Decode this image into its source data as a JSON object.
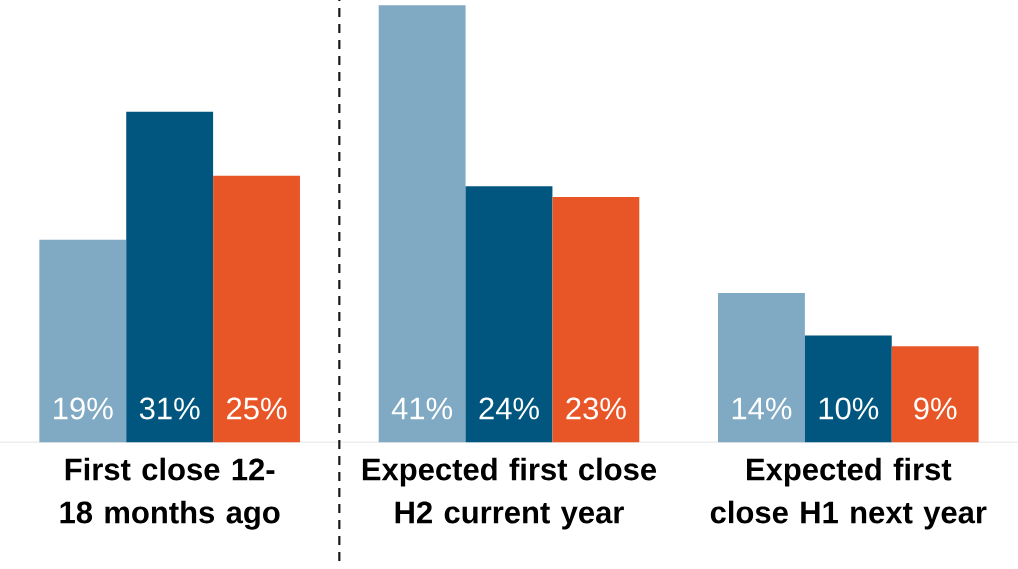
{
  "chart_data": {
    "type": "bar",
    "categories": [
      "First close 12-18 months ago",
      "Expected first close H2 current year",
      "Expected first close H1 next year"
    ],
    "series": [
      {
        "color": "#80a9c3",
        "values": [
          19,
          41,
          14
        ],
        "value_labels": [
          "19%",
          "41%",
          "14%"
        ]
      },
      {
        "color": "#00567f",
        "values": [
          31,
          24,
          10
        ],
        "value_labels": [
          "31%",
          "24%",
          "10%"
        ]
      },
      {
        "color": "#e85628",
        "values": [
          25,
          23,
          9
        ],
        "value_labels": [
          "25%",
          "23%",
          "9%"
        ]
      }
    ]
  }
}
